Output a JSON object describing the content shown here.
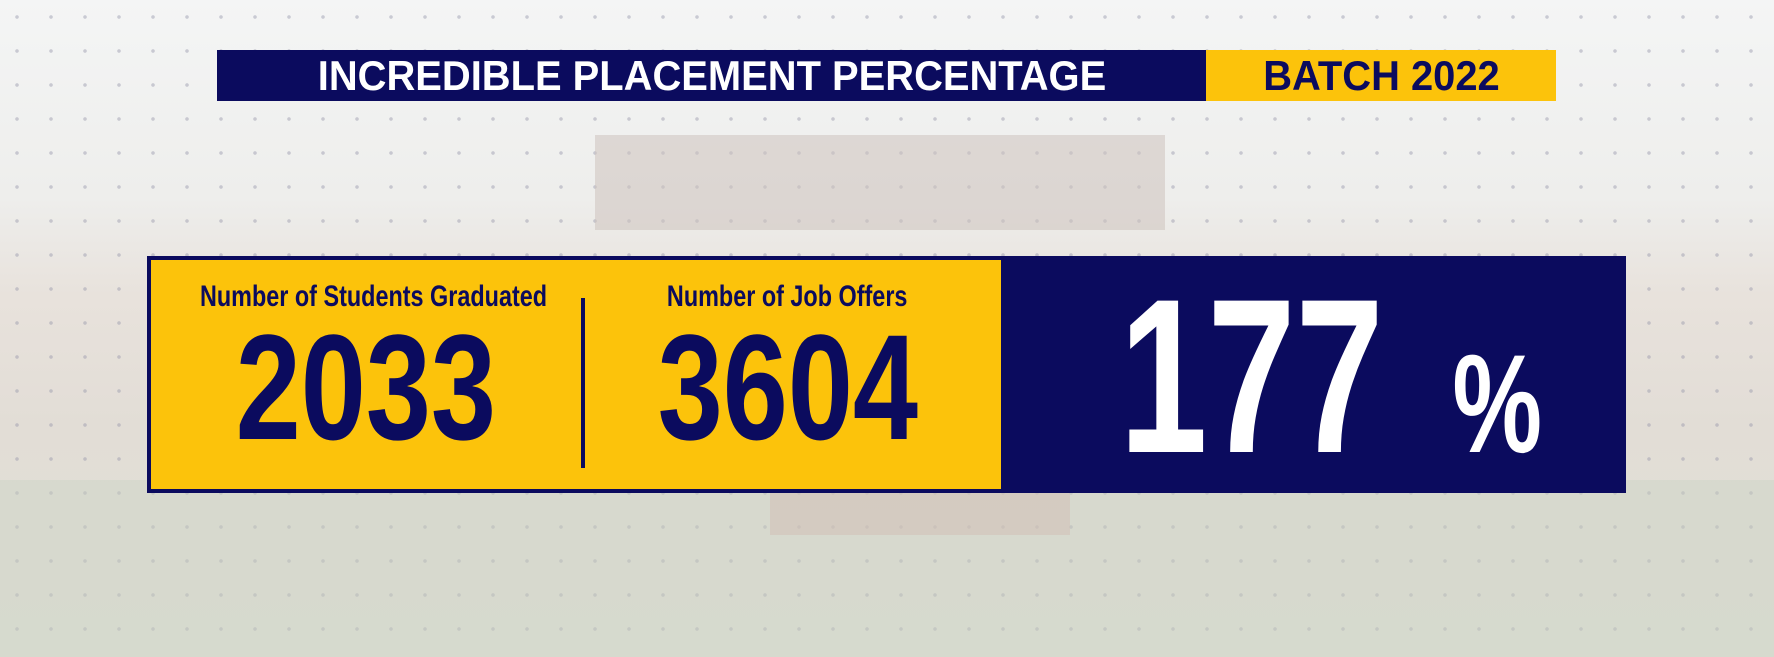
{
  "header": {
    "title": "INCREDIBLE PLACEMENT PERCENTAGE",
    "batch": "BATCH 2022"
  },
  "stats": [
    {
      "label": "Number of Students Graduated",
      "value": 2033
    },
    {
      "label": "Number of Job Offers",
      "value": 3604
    }
  ],
  "percentage": {
    "value": 177,
    "unit": "%"
  }
}
